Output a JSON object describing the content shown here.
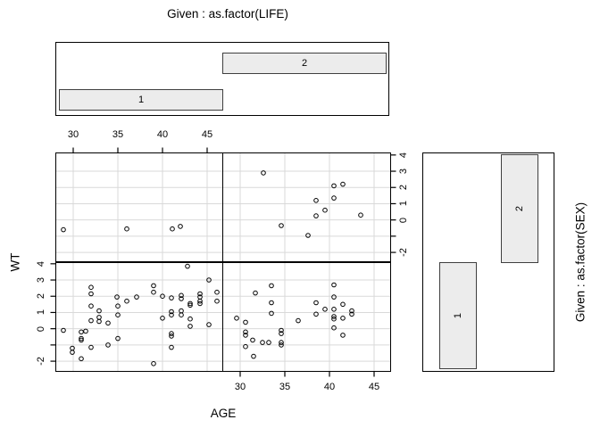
{
  "titles": {
    "top_given": "Given : as.factor(LIFE)",
    "right_given": "Given : as.factor(SEX)",
    "xlabel": "AGE",
    "ylabel": "WT"
  },
  "given_top": {
    "bars": [
      {
        "label": "1"
      },
      {
        "label": "2"
      }
    ]
  },
  "given_right": {
    "bars": [
      {
        "label": "1"
      },
      {
        "label": "2"
      }
    ]
  },
  "colors": {
    "bar_fill": "#ececec",
    "bar_border": "#3f3f3f",
    "grid": "#d9d9d9",
    "point_stroke": "#000000",
    "axis": "#000000"
  },
  "chart_data": {
    "type": "scatter",
    "title": "Given : as.factor(LIFE)",
    "xlabel": "AGE",
    "ylabel": "WT",
    "right_label": "Given : as.factor(SEX)",
    "xlim": [
      28.1,
      46.8
    ],
    "ylim": [
      -2.6,
      4.1
    ],
    "x_ticks": [
      30,
      35,
      40,
      45
    ],
    "y_ticks_all": [
      4,
      3,
      2,
      1,
      0,
      -1,
      -2
    ],
    "y_tick_labels": [
      "4",
      "3",
      "2",
      "1",
      "0",
      "",
      "-2"
    ],
    "grid_x": [
      30,
      35,
      40,
      45
    ],
    "grid_y": [
      3,
      2,
      1,
      0,
      -1,
      -2
    ],
    "grid_on": true,
    "legend_position": "none",
    "panels": [
      {
        "name": "life1-sex2",
        "given_life": "1",
        "given_sex": "2",
        "col": 0,
        "row": 0,
        "points": [
          [
            28.9,
            -0.6
          ],
          [
            36.0,
            -0.55
          ],
          [
            41.1,
            -0.55
          ],
          [
            42.0,
            -0.4
          ]
        ]
      },
      {
        "name": "life2-sex2",
        "given_life": "2",
        "given_sex": "2",
        "col": 1,
        "row": 0,
        "points": [
          [
            32.6,
            2.9
          ],
          [
            34.6,
            -0.35
          ],
          [
            37.6,
            -0.95
          ],
          [
            38.5,
            1.2
          ],
          [
            38.5,
            0.25
          ],
          [
            39.5,
            0.6
          ],
          [
            40.5,
            2.1
          ],
          [
            40.5,
            1.35
          ],
          [
            41.5,
            2.2
          ],
          [
            43.5,
            0.3
          ]
        ]
      },
      {
        "name": "life1-sex1",
        "given_life": "1",
        "given_sex": "1",
        "col": 0,
        "row": 1,
        "points": [
          [
            28.9,
            -0.1
          ],
          [
            29.9,
            -1.2
          ],
          [
            29.9,
            -1.45
          ],
          [
            30.9,
            -0.2
          ],
          [
            30.9,
            -0.6
          ],
          [
            30.9,
            -0.7
          ],
          [
            30.9,
            -1.85
          ],
          [
            31.4,
            -0.15
          ],
          [
            32.0,
            2.55
          ],
          [
            32.0,
            2.15
          ],
          [
            32.0,
            1.4
          ],
          [
            32.0,
            0.5
          ],
          [
            32.0,
            -1.15
          ],
          [
            32.9,
            1.1
          ],
          [
            32.9,
            0.7
          ],
          [
            32.9,
            0.45
          ],
          [
            33.9,
            0.35
          ],
          [
            33.9,
            -1.0
          ],
          [
            34.9,
            1.95
          ],
          [
            35.0,
            1.4
          ],
          [
            35.0,
            0.85
          ],
          [
            35.0,
            -0.6
          ],
          [
            36.0,
            1.7
          ],
          [
            37.1,
            1.95
          ],
          [
            39.0,
            2.65
          ],
          [
            39.0,
            2.25
          ],
          [
            39.0,
            -2.15
          ],
          [
            40.0,
            2.0
          ],
          [
            40.0,
            0.65
          ],
          [
            41.0,
            1.9
          ],
          [
            41.0,
            1.05
          ],
          [
            41.0,
            0.85
          ],
          [
            41.0,
            -0.3
          ],
          [
            41.0,
            -0.45
          ],
          [
            41.0,
            -1.15
          ],
          [
            42.1,
            2.05
          ],
          [
            42.1,
            1.85
          ],
          [
            42.1,
            1.1
          ],
          [
            42.1,
            0.85
          ],
          [
            42.8,
            3.85
          ],
          [
            43.1,
            1.55
          ],
          [
            43.1,
            1.45
          ],
          [
            43.1,
            0.6
          ],
          [
            43.1,
            0.15
          ],
          [
            44.2,
            2.15
          ],
          [
            44.2,
            1.95
          ],
          [
            44.2,
            1.7
          ],
          [
            44.2,
            1.55
          ],
          [
            45.2,
            3.0
          ],
          [
            45.2,
            0.25
          ],
          [
            46.1,
            2.25
          ],
          [
            46.1,
            1.7
          ]
        ]
      },
      {
        "name": "life2-sex1",
        "given_life": "2",
        "given_sex": "1",
        "col": 1,
        "row": 1,
        "points": [
          [
            29.6,
            0.65
          ],
          [
            30.6,
            0.4
          ],
          [
            30.6,
            -0.2
          ],
          [
            30.6,
            -0.4
          ],
          [
            30.6,
            -1.1
          ],
          [
            31.4,
            -0.7
          ],
          [
            31.5,
            -1.7
          ],
          [
            31.7,
            2.2
          ],
          [
            32.5,
            -0.85
          ],
          [
            33.2,
            -0.85
          ],
          [
            33.5,
            2.65
          ],
          [
            33.5,
            1.6
          ],
          [
            33.5,
            0.95
          ],
          [
            34.6,
            -0.1
          ],
          [
            34.6,
            -0.3
          ],
          [
            34.6,
            -0.85
          ],
          [
            34.6,
            -1.0
          ],
          [
            36.5,
            0.5
          ],
          [
            38.5,
            1.6
          ],
          [
            38.5,
            0.9
          ],
          [
            39.5,
            1.2
          ],
          [
            40.5,
            2.7
          ],
          [
            40.5,
            1.95
          ],
          [
            40.5,
            1.2
          ],
          [
            40.5,
            0.75
          ],
          [
            40.5,
            0.6
          ],
          [
            40.5,
            0.05
          ],
          [
            41.5,
            1.5
          ],
          [
            41.5,
            0.65
          ],
          [
            41.5,
            -0.4
          ],
          [
            42.5,
            1.1
          ],
          [
            42.5,
            0.9
          ]
        ]
      }
    ]
  }
}
